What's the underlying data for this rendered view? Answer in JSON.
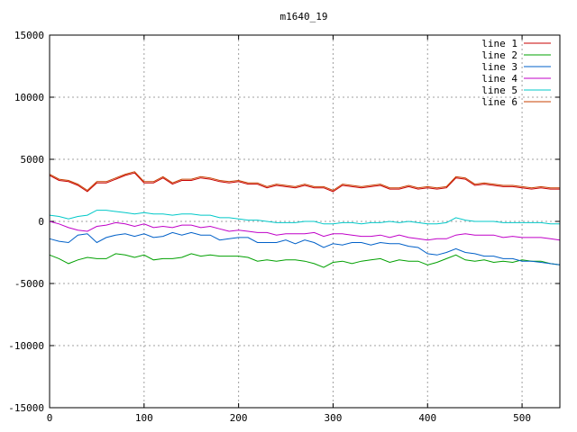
{
  "chart_data": {
    "type": "line",
    "title": "m1640_19",
    "xlabel": "",
    "ylabel": "",
    "xlim": [
      0,
      540
    ],
    "ylim": [
      -15000,
      15000
    ],
    "x_ticks": [
      0,
      100,
      200,
      300,
      400,
      500
    ],
    "y_ticks": [
      -15000,
      -10000,
      -5000,
      0,
      5000,
      10000,
      15000
    ],
    "grid": true,
    "legend_position": "top-right",
    "x_step": 10,
    "series": [
      {
        "name": "line 1",
        "color": "#c80000",
        "values": [
          3700,
          3300,
          3200,
          2900,
          2400,
          3100,
          3100,
          3400,
          3700,
          3900,
          3100,
          3100,
          3500,
          3000,
          3300,
          3300,
          3500,
          3400,
          3200,
          3100,
          3200,
          3000,
          3000,
          2700,
          2900,
          2800,
          2700,
          2900,
          2700,
          2700,
          2400,
          2900,
          2800,
          2700,
          2800,
          2900,
          2600,
          2600,
          2800,
          2600,
          2700,
          2600,
          2700,
          3500,
          3400,
          2900,
          3000,
          2900,
          2800,
          2800,
          2700,
          2600,
          2700,
          2600,
          2600
        ]
      },
      {
        "name": "line 2",
        "color": "#00a000",
        "values": [
          -2700,
          -3000,
          -3400,
          -3100,
          -2900,
          -3000,
          -3000,
          -2600,
          -2700,
          -2900,
          -2700,
          -3100,
          -3000,
          -3000,
          -2900,
          -2600,
          -2800,
          -2700,
          -2800,
          -2800,
          -2800,
          -2900,
          -3200,
          -3100,
          -3200,
          -3100,
          -3100,
          -3200,
          -3400,
          -3700,
          -3300,
          -3200,
          -3400,
          -3200,
          -3100,
          -3000,
          -3300,
          -3100,
          -3200,
          -3200,
          -3500,
          -3300,
          -3000,
          -2700,
          -3100,
          -3200,
          -3100,
          -3300,
          -3200,
          -3300,
          -3100,
          -3200,
          -3200,
          -3400,
          -3500
        ]
      },
      {
        "name": "line 3",
        "color": "#0060c8",
        "values": [
          -1400,
          -1600,
          -1700,
          -1100,
          -1000,
          -1700,
          -1300,
          -1100,
          -1000,
          -1200,
          -1000,
          -1300,
          -1200,
          -900,
          -1100,
          -900,
          -1100,
          -1100,
          -1500,
          -1400,
          -1300,
          -1300,
          -1700,
          -1700,
          -1700,
          -1500,
          -1800,
          -1500,
          -1700,
          -2100,
          -1800,
          -1900,
          -1700,
          -1700,
          -1900,
          -1700,
          -1800,
          -1800,
          -2000,
          -2100,
          -2600,
          -2700,
          -2500,
          -2200,
          -2500,
          -2600,
          -2800,
          -2800,
          -3000,
          -3000,
          -3200,
          -3200,
          -3300,
          -3400,
          -3500
        ]
      },
      {
        "name": "line 4",
        "color": "#c000c8",
        "values": [
          0,
          -200,
          -500,
          -700,
          -800,
          -400,
          -300,
          -100,
          -200,
          -400,
          -200,
          -500,
          -400,
          -500,
          -300,
          -300,
          -500,
          -400,
          -600,
          -800,
          -700,
          -800,
          -900,
          -900,
          -1100,
          -1000,
          -1000,
          -1000,
          -900,
          -1200,
          -1000,
          -1000,
          -1100,
          -1200,
          -1200,
          -1100,
          -1300,
          -1100,
          -1300,
          -1400,
          -1500,
          -1400,
          -1400,
          -1100,
          -1000,
          -1100,
          -1100,
          -1100,
          -1300,
          -1200,
          -1300,
          -1300,
          -1300,
          -1400,
          -1500
        ]
      },
      {
        "name": "line 5",
        "color": "#00c8c8",
        "values": [
          500,
          400,
          200,
          400,
          500,
          900,
          900,
          800,
          700,
          600,
          700,
          600,
          600,
          500,
          600,
          600,
          500,
          500,
          300,
          300,
          200,
          100,
          100,
          0,
          -100,
          -100,
          -100,
          0,
          0,
          -200,
          -200,
          -100,
          -100,
          -200,
          -100,
          -100,
          0,
          -100,
          0,
          -100,
          -200,
          -200,
          -100,
          300,
          100,
          0,
          0,
          0,
          -100,
          -100,
          -100,
          -100,
          -100,
          -200,
          -200
        ]
      },
      {
        "name": "line 6",
        "color": "#c84000",
        "values": [
          3800,
          3400,
          3300,
          3000,
          2500,
          3200,
          3200,
          3500,
          3800,
          4000,
          3200,
          3200,
          3600,
          3100,
          3400,
          3400,
          3600,
          3500,
          3300,
          3200,
          3300,
          3100,
          3100,
          2800,
          3000,
          2900,
          2800,
          3000,
          2800,
          2800,
          2500,
          3000,
          2900,
          2800,
          2900,
          3000,
          2700,
          2700,
          2900,
          2700,
          2800,
          2700,
          2800,
          3600,
          3500,
          3000,
          3100,
          3000,
          2900,
          2900,
          2800,
          2700,
          2800,
          2700,
          2700
        ]
      }
    ]
  }
}
